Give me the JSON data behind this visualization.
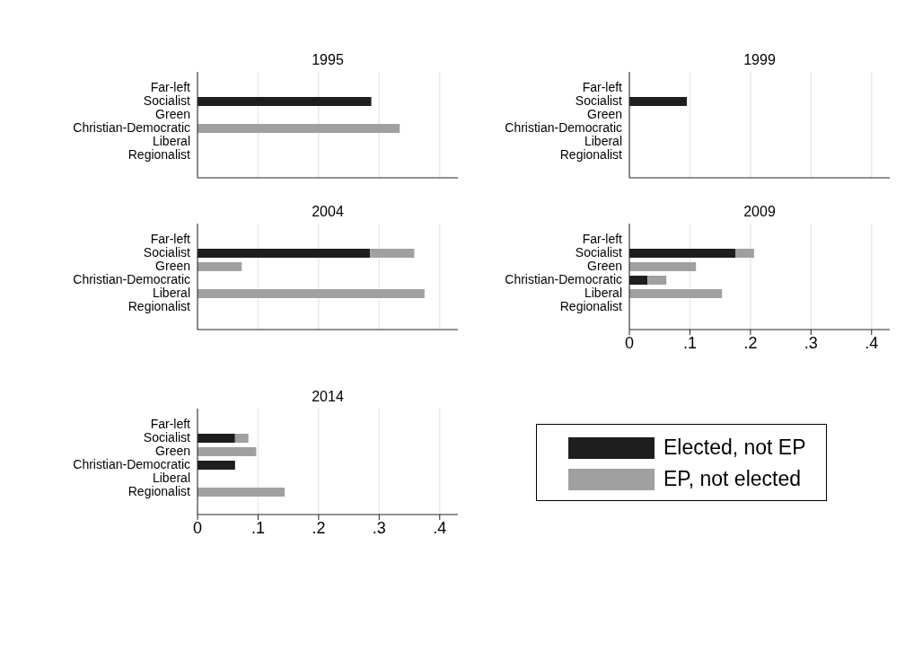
{
  "chart_data": [
    {
      "type": "bar",
      "title": "1995",
      "orientation": "horizontal",
      "stacked": true,
      "categories": [
        "Far-left",
        "Socialist",
        "Green",
        "Christian-Democratic",
        "Liberal",
        "Regionalist"
      ],
      "series": [
        {
          "name": "Elected, not EP",
          "color": "#1e1e1e",
          "values": [
            0,
            0.287,
            0,
            0,
            0,
            0
          ]
        },
        {
          "name": "EP, not elected",
          "color": "#a0a0a0",
          "values": [
            0,
            0,
            0,
            0.334,
            0,
            0
          ]
        }
      ],
      "xlim": [
        0,
        0.43
      ],
      "xticks": [
        0,
        0.1,
        0.2,
        0.3,
        0.4
      ],
      "grid": "x",
      "tick_labels": "y",
      "legend": "bottom right"
    },
    {
      "type": "bar",
      "title": "1999",
      "orientation": "horizontal",
      "stacked": true,
      "categories": [
        "Far-left",
        "Socialist",
        "Green",
        "Christian-Democratic",
        "Liberal",
        "Regionalist"
      ],
      "series": [
        {
          "color": "#1e1e1e",
          "values": [
            0,
            0.095,
            0,
            0,
            0,
            0
          ]
        },
        {
          "color": "#a0a0a0",
          "values": [
            0,
            0,
            0,
            0,
            0,
            0
          ]
        }
      ],
      "xlim": [
        0,
        0.43
      ],
      "xticks": [
        0,
        0.1,
        0.2,
        0.3,
        0.4
      ],
      "grid": "x",
      "tick_labels": "y"
    },
    {
      "type": "bar",
      "title": "2004",
      "orientation": "horizontal",
      "stacked": true,
      "categories": [
        "Far-left",
        "Socialist",
        "Green",
        "Christian-Democratic",
        "Liberal",
        "Regionalist"
      ],
      "series": [
        {
          "color": "#1e1e1e",
          "values": [
            0,
            0.285,
            0,
            0,
            0,
            0
          ]
        },
        {
          "color": "#a0a0a0",
          "values": [
            0,
            0.073,
            0.073,
            0,
            0.375,
            0
          ]
        }
      ],
      "xlim": [
        0,
        0.43
      ],
      "xticks": [
        0,
        0.1,
        0.2,
        0.3,
        0.4
      ],
      "grid": "x",
      "tick_labels": "y"
    },
    {
      "type": "bar",
      "title": "2009",
      "orientation": "horizontal",
      "stacked": true,
      "categories": [
        "Far-left",
        "Socialist",
        "Green",
        "Christian-Democratic",
        "Liberal",
        "Regionalist"
      ],
      "series": [
        {
          "color": "#1e1e1e",
          "values": [
            0,
            0.175,
            0,
            0.03,
            0,
            0
          ]
        },
        {
          "color": "#a0a0a0",
          "values": [
            0,
            0.031,
            0.11,
            0.031,
            0.153,
            0
          ]
        }
      ],
      "xlim": [
        0,
        0.43
      ],
      "xticks": [
        0,
        {
          "value": 0.1,
          "label": ".1"
        },
        {
          "value": 0.2,
          "label": ".2"
        },
        {
          "value": 0.3,
          "label": ".3"
        },
        {
          "value": 0.4,
          "label": ".4"
        }
      ],
      "grid": "x"
    },
    {
      "type": "bar",
      "title": "2014",
      "orientation": "horizontal",
      "stacked": true,
      "categories": [
        "Far-left",
        "Socialist",
        "Green",
        "Christian-Democratic",
        "Liberal",
        "Regionalist"
      ],
      "series": [
        {
          "color": "#1e1e1e",
          "values": [
            0,
            0.062,
            0,
            0.062,
            0,
            0
          ]
        },
        {
          "color": "#a0a0a0",
          "values": [
            0,
            0.022,
            0.097,
            0,
            0,
            0.144
          ]
        }
      ],
      "xlim": [
        0,
        0.43
      ],
      "xticks": [
        0,
        {
          "value": 0.1,
          "label": ".1"
        },
        {
          "value": 0.2,
          "label": ".2"
        },
        {
          "value": 0.3,
          "label": ".3"
        },
        {
          "value": 0.4,
          "label": ".4"
        }
      ],
      "grid": "x"
    }
  ]
}
